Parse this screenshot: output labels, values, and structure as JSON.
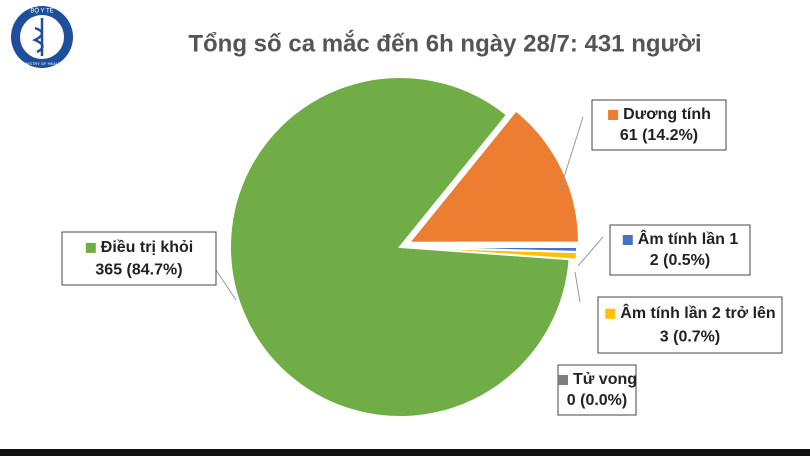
{
  "logo": {
    "top": "BỘ Y TẾ",
    "bottom": "MINISTRY OF HEALTH"
  },
  "chart_data": {
    "type": "pie",
    "title": "Tổng số ca mắc đến 6h ngày 28/7: 431 người",
    "categories": [
      "Dương tính",
      "Âm tính lần 1",
      "Âm tính lần 2 trở lên",
      "Tử vong",
      "Điều trị khỏi"
    ],
    "values": [
      61,
      2,
      3,
      0,
      365
    ],
    "value_labels": [
      "61 (14.2%)",
      "2 (0.5%)",
      "3 (0.7%)",
      "0 (0.0%)",
      "365 (84.7%)"
    ],
    "colors": [
      "#ed7d31",
      "#4472c4",
      "#ffc000",
      "#7f7f7f",
      "#70ad47"
    ]
  }
}
